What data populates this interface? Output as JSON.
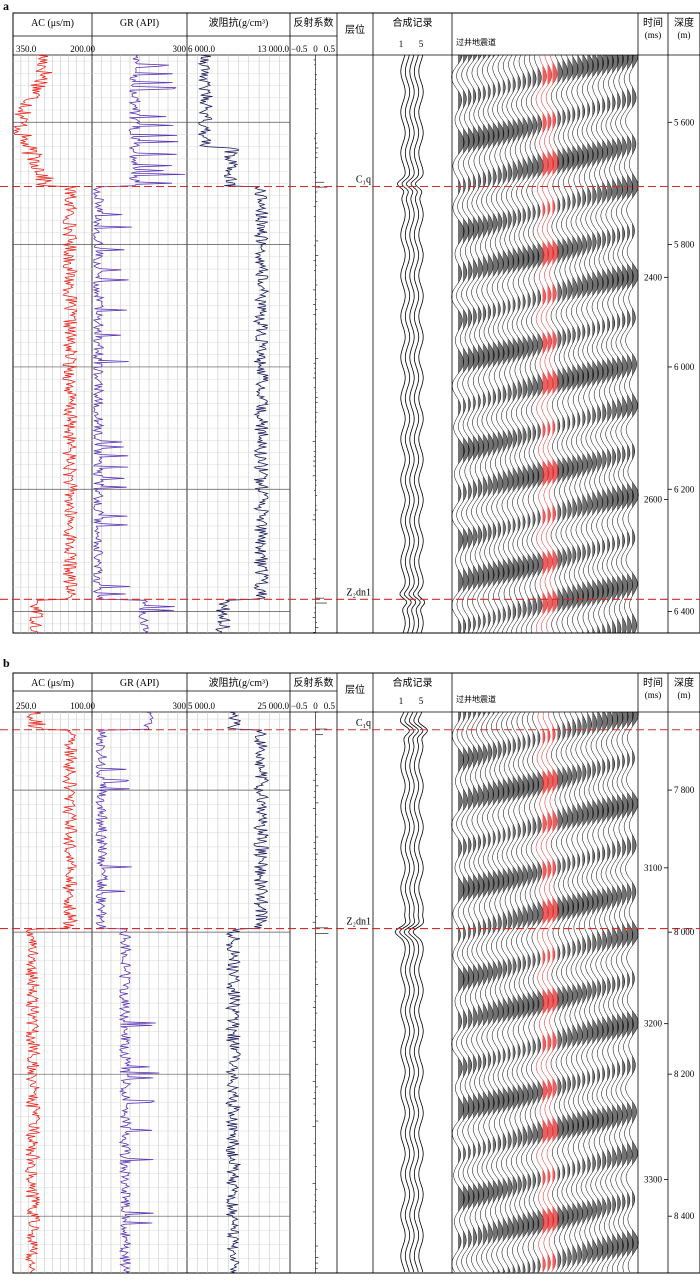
{
  "panels": [
    {
      "label": "a",
      "headers": {
        "ac": "AC (μs/m)",
        "gr": "GR (API)",
        "imp": "波阻抗(g/cm³)",
        "rc": "反射系数",
        "layer": "层位",
        "synth": "合成记录",
        "seis": "",
        "time": "时间(ms)",
        "depth": "深度(m)"
      },
      "scales": {
        "ac": [
          "350.0",
          "200.00"
        ],
        "gr": [
          "",
          "300"
        ],
        "imp": [
          "6 000.0",
          "13 000.0"
        ],
        "rc": [
          "−0.5",
          "0",
          "0.5"
        ],
        "synth": [
          "1",
          "5"
        ],
        "seis": "过井地震道"
      },
      "horizons": [
        {
          "name": "C₁q",
          "depth": 5705
        },
        {
          "name": "Z₂dn1",
          "depth": 6380
        }
      ],
      "time_ticks": [
        "2400",
        "2600"
      ],
      "depth_ticks": [
        "5 600",
        "5 800",
        "6 000",
        "6 200",
        "6 400"
      ],
      "depth_range": [
        5490,
        6435
      ]
    },
    {
      "label": "b",
      "headers": {
        "ac": "AC (μs/m)",
        "gr": "GR (API)",
        "imp": "波阻抗(g/cm³)",
        "rc": "反射系数",
        "layer": "层位",
        "synth": "合成记录",
        "seis": "",
        "time": "时间(ms)",
        "depth": "深度(m)"
      },
      "scales": {
        "ac": [
          "250.0",
          "100.00"
        ],
        "gr": [
          "",
          "300"
        ],
        "imp": [
          "5 000.0",
          "25 000.0"
        ],
        "rc": [
          "−0.5",
          "0",
          "0.5"
        ],
        "synth": [
          "1",
          "5"
        ],
        "seis": "过井地震道"
      },
      "horizons": [
        {
          "name": "C₁q",
          "depth": 7715
        },
        {
          "name": "Z₂dn1",
          "depth": 7995
        }
      ],
      "time_ticks": [
        "3100",
        "3200",
        "3300"
      ],
      "depth_ticks": [
        "7 800",
        "8 000",
        "8 200",
        "8 400"
      ],
      "depth_range": [
        7690,
        8480
      ]
    }
  ],
  "colors": {
    "ac": "#e8261c",
    "gr": "#5b35b5",
    "imp": "#1c1c5e",
    "horizon": "#d72a2a",
    "grid": "#999999",
    "wiggle": "#000000",
    "wellTrace": "#e02020"
  }
}
